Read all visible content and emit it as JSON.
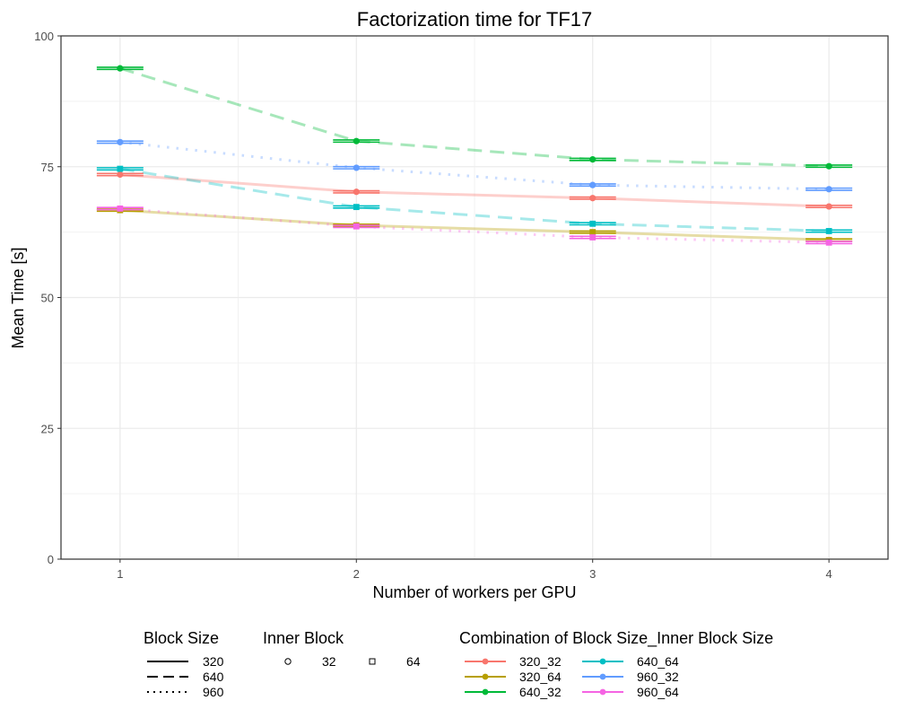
{
  "chart_data": {
    "type": "line",
    "title": "Factorization time for TF17",
    "xlabel": "Number of workers per GPU",
    "ylabel": "Mean Time [s]",
    "x": [
      1,
      2,
      3,
      4
    ],
    "xlim": [
      0.75,
      4.25
    ],
    "ylim": [
      0,
      100
    ],
    "yticks": [
      0,
      25,
      50,
      75,
      100
    ],
    "grid": true,
    "legend_position": "bottom",
    "series": [
      {
        "name": "320_32",
        "block": "320",
        "inner": "32",
        "linetype": "solid",
        "shape": "circle",
        "color": "#F8766D",
        "values": [
          73.5,
          70.2,
          69.0,
          67.4
        ]
      },
      {
        "name": "320_64",
        "block": "320",
        "inner": "64",
        "linetype": "solid",
        "shape": "square",
        "color": "#B79F00",
        "values": [
          66.7,
          63.8,
          62.5,
          61.0
        ]
      },
      {
        "name": "640_32",
        "block": "640",
        "inner": "32",
        "linetype": "dashed",
        "shape": "circle",
        "color": "#00BA38",
        "values": [
          93.8,
          79.9,
          76.4,
          75.1
        ]
      },
      {
        "name": "640_64",
        "block": "640",
        "inner": "64",
        "linetype": "dashed",
        "shape": "square",
        "color": "#00BFC4",
        "values": [
          74.6,
          67.3,
          64.1,
          62.7
        ]
      },
      {
        "name": "960_32",
        "block": "960",
        "inner": "32",
        "linetype": "dotted",
        "shape": "circle",
        "color": "#619CFF",
        "values": [
          79.7,
          74.8,
          71.5,
          70.7
        ]
      },
      {
        "name": "960_64",
        "block": "960",
        "inner": "64",
        "linetype": "dotted",
        "shape": "square",
        "color": "#F564E3",
        "values": [
          67.0,
          63.6,
          61.5,
          60.5
        ]
      }
    ],
    "legends": {
      "block_size": {
        "title": "Block Size",
        "items": [
          {
            "label": "320",
            "linetype": "solid"
          },
          {
            "label": "640",
            "linetype": "dashed"
          },
          {
            "label": "960",
            "linetype": "dotted"
          }
        ]
      },
      "inner_block": {
        "title": "Inner Block",
        "items": [
          {
            "label": "32",
            "shape": "circle"
          },
          {
            "label": "64",
            "shape": "square"
          }
        ]
      },
      "combination": {
        "title": "Combination of Block Size_Inner Block Size",
        "items": [
          "320_32",
          "320_64",
          "640_32",
          "640_64",
          "960_32",
          "960_64"
        ]
      }
    }
  }
}
